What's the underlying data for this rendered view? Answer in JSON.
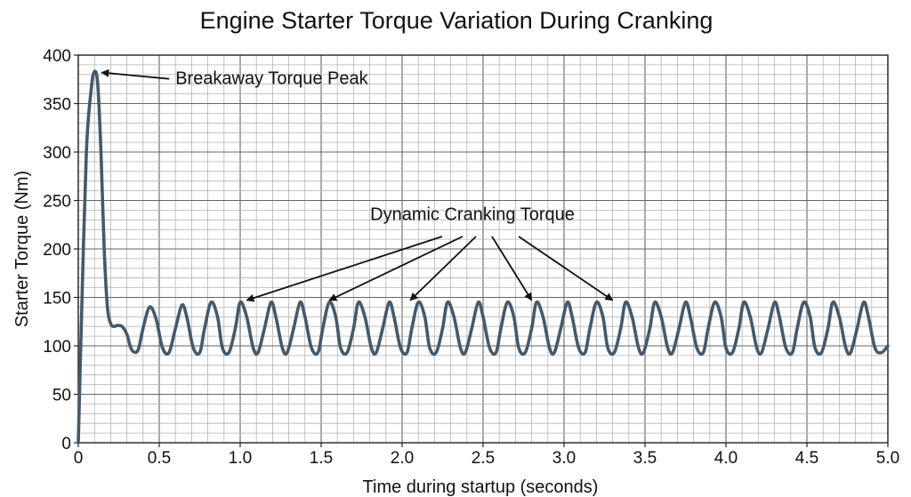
{
  "chart_data": {
    "type": "line",
    "title": "Engine Starter Torque Variation During Cranking",
    "xlabel": "Time during startup (seconds)",
    "ylabel": "Starter Torque (Nm)",
    "xlim": [
      0,
      5.0
    ],
    "ylim": [
      0,
      400
    ],
    "x_ticks": [
      "0",
      "0.5",
      "1.0",
      "1.5",
      "2.0",
      "2.5",
      "3.0",
      "3.5",
      "4.0",
      "4.5",
      "5.0"
    ],
    "y_ticks": [
      "0",
      "50",
      "100",
      "150",
      "200",
      "250",
      "300",
      "350",
      "400"
    ],
    "grid": true,
    "series": [
      {
        "color": "#44596b",
        "x": [
          0,
          0.02,
          0.05,
          0.08,
          0.1,
          0.12,
          0.14,
          0.16,
          0.18,
          0.2,
          0.22,
          0.24,
          0.27,
          0.3,
          0.32,
          0.34,
          0.37,
          0.4,
          0.44,
          0.48,
          0.52,
          0.56,
          0.6,
          0.64,
          0.67,
          0.71,
          0.75,
          0.78,
          0.82,
          0.86,
          0.89,
          0.93,
          0.97,
          1.0,
          1.04,
          1.08,
          1.11,
          1.15,
          1.19,
          1.22,
          1.26,
          1.29,
          1.33,
          1.37,
          1.4,
          1.44,
          1.48,
          1.51,
          1.55,
          1.59,
          1.62,
          1.66,
          1.7,
          1.73,
          1.77,
          1.81,
          1.84,
          1.88,
          1.92,
          1.95,
          1.99,
          2.03,
          2.06,
          2.1,
          2.14,
          2.17,
          2.21,
          2.25,
          2.28,
          2.32,
          2.36,
          2.39,
          2.43,
          2.47,
          2.5,
          2.54,
          2.58,
          2.61,
          2.65,
          2.69,
          2.72,
          2.76,
          2.8,
          2.83,
          2.87,
          2.91,
          2.94,
          2.98,
          3.02,
          3.05,
          3.09,
          3.13,
          3.16,
          3.2,
          3.24,
          3.27,
          3.31,
          3.35,
          3.38,
          3.42,
          3.46,
          3.49,
          3.53,
          3.56,
          3.6,
          3.64,
          3.67,
          3.71,
          3.75,
          3.78,
          3.82,
          3.86,
          3.89,
          3.93,
          3.97,
          4.0,
          4.04,
          4.08,
          4.11,
          4.15,
          4.19,
          4.22,
          4.26,
          4.3,
          4.33,
          4.37,
          4.41,
          4.44,
          4.48,
          4.52,
          4.55,
          4.59,
          4.63,
          4.66,
          4.7,
          4.74,
          4.77,
          4.81,
          4.85,
          4.88,
          4.92,
          4.96,
          5.0
        ],
        "y": [
          0,
          130,
          300,
          365,
          383,
          370,
          300,
          200,
          140,
          123,
          120,
          121,
          120,
          112,
          100,
          94,
          96,
          118,
          140,
          128,
          98,
          93,
          118,
          142,
          130,
          98,
          93,
          118,
          145,
          130,
          98,
          93,
          118,
          145,
          130,
          98,
          93,
          118,
          145,
          130,
          98,
          93,
          118,
          145,
          130,
          98,
          93,
          118,
          145,
          130,
          98,
          93,
          118,
          145,
          130,
          98,
          93,
          118,
          145,
          130,
          98,
          93,
          118,
          145,
          130,
          98,
          93,
          118,
          145,
          130,
          98,
          93,
          118,
          145,
          130,
          98,
          93,
          118,
          145,
          130,
          98,
          93,
          118,
          145,
          130,
          98,
          93,
          118,
          145,
          130,
          98,
          93,
          118,
          145,
          130,
          98,
          93,
          118,
          145,
          130,
          98,
          93,
          118,
          145,
          130,
          98,
          93,
          118,
          145,
          130,
          98,
          93,
          118,
          145,
          130,
          98,
          93,
          118,
          145,
          130,
          98,
          93,
          118,
          145,
          130,
          98,
          93,
          118,
          145,
          130,
          98,
          93,
          118,
          145,
          130,
          98,
          93,
          118,
          145,
          130,
          98,
          93,
          100
        ]
      }
    ],
    "annotations": [
      {
        "text": "Breakaway Torque Peak",
        "point": [
          0.1,
          383
        ],
        "text_at": [
          0.6,
          370
        ]
      },
      {
        "text": "Dynamic Cranking Torque",
        "text_at": [
          2.5,
          230
        ],
        "points": [
          [
            1.04,
            147
          ],
          [
            1.55,
            147
          ],
          [
            2.05,
            147
          ],
          [
            2.8,
            147
          ],
          [
            3.3,
            147
          ]
        ]
      }
    ]
  }
}
